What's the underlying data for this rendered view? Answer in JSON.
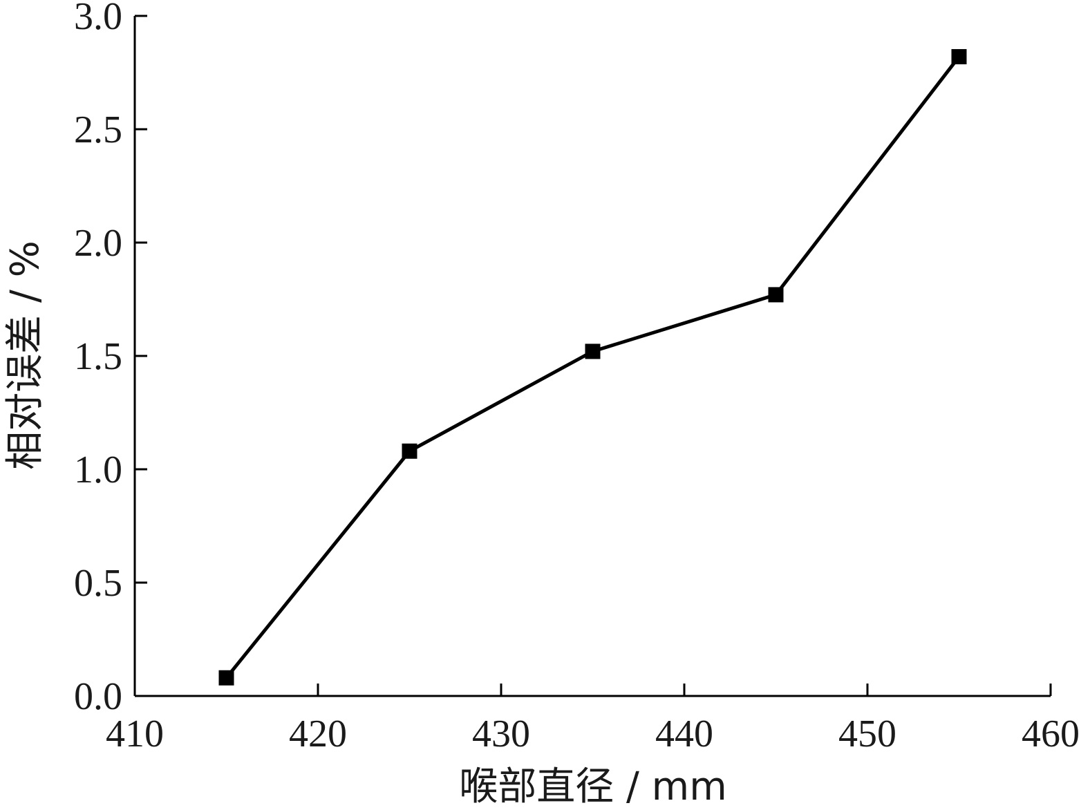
{
  "chart_data": {
    "type": "line",
    "title": "",
    "xlabel": "喉部直径 / mm",
    "ylabel": "相对误差 / %",
    "xlim": [
      410,
      460
    ],
    "ylim": [
      0,
      3.0
    ],
    "x_ticks": [
      "410",
      "420",
      "430",
      "440",
      "450",
      "460"
    ],
    "y_ticks": [
      "0.0",
      "0.5",
      "1.0",
      "1.5",
      "2.0",
      "2.5",
      "3.0"
    ],
    "grid": false,
    "legend": "none",
    "marker": "square",
    "line_color": "#000000",
    "series": [
      {
        "x": [
          415,
          425,
          435,
          445,
          455
        ],
        "values": [
          0.08,
          1.08,
          1.52,
          1.77,
          2.82
        ]
      }
    ]
  }
}
